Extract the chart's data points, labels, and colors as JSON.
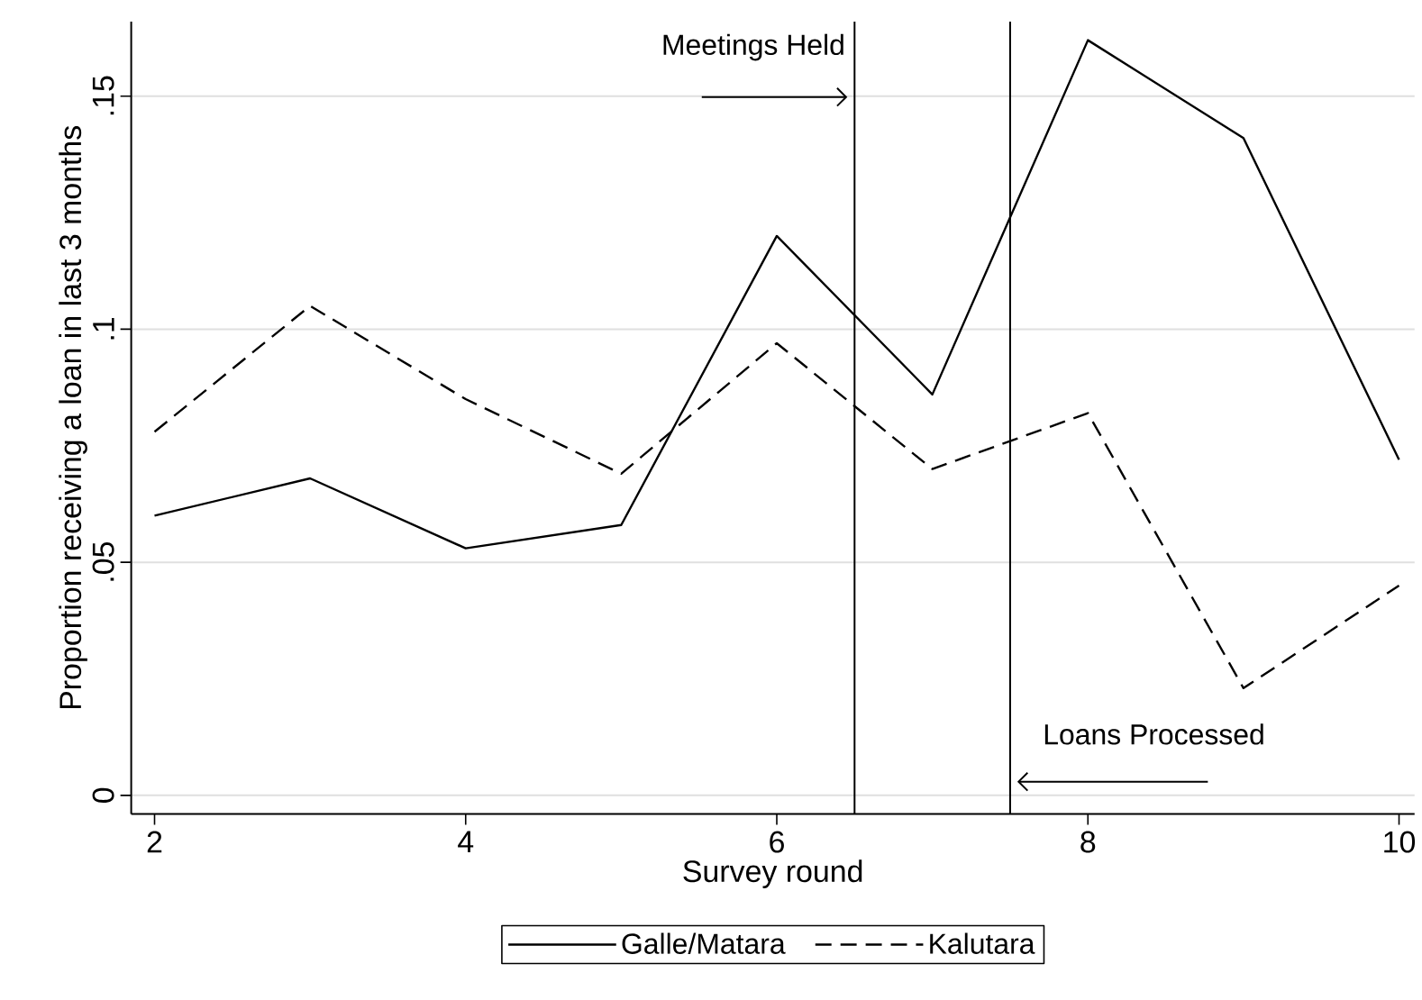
{
  "chart_data": {
    "type": "line",
    "xlabel": "Survey round",
    "ylabel": "Proportion receiving a loan in last 3 months",
    "x": [
      2,
      3,
      4,
      5,
      6,
      7,
      8,
      9,
      10
    ],
    "series": [
      {
        "name": "Galle/Matara",
        "color": "#000000",
        "line_style": "solid",
        "values": [
          0.06,
          0.068,
          0.053,
          0.058,
          0.12,
          0.086,
          0.162,
          0.141,
          0.072
        ]
      },
      {
        "name": "Kalutara",
        "color": "#000000",
        "line_style": "dashed",
        "values": [
          0.078,
          0.105,
          0.085,
          0.069,
          0.097,
          0.07,
          0.082,
          0.023,
          0.045
        ]
      }
    ],
    "xlim": [
      1.85,
      10.1
    ],
    "ylim": [
      -0.004,
      0.166
    ],
    "xticks": [
      2,
      4,
      6,
      8,
      10
    ],
    "yticks": [
      {
        "value": 0,
        "label": "0"
      },
      {
        "value": 0.05,
        "label": ".05"
      },
      {
        "value": 0.1,
        "label": ".1"
      },
      {
        "value": 0.15,
        "label": ".15"
      }
    ],
    "ref_lines": [
      {
        "axis": "x",
        "value": 6.5,
        "label": "Meetings Held",
        "color": "#000000"
      },
      {
        "axis": "x",
        "value": 7.5,
        "label": "Loans Processed",
        "color": "#000000"
      }
    ],
    "grid": "y",
    "legend": "bottom",
    "marker": "none"
  }
}
